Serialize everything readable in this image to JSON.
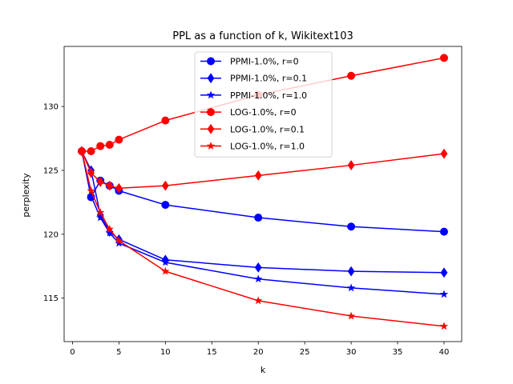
{
  "chart_data": {
    "type": "line",
    "title": "PPL as a function of k, Wikitext103",
    "xlabel": "k",
    "ylabel": "perplexity",
    "xlim": [
      -0.9,
      41.9
    ],
    "ylim": [
      111.6,
      134.7
    ],
    "xticks": [
      0,
      5,
      10,
      15,
      20,
      25,
      30,
      35,
      40
    ],
    "yticks": [
      115,
      120,
      125,
      130
    ],
    "grid": false,
    "legend_position": "top-center",
    "x": [
      1,
      2,
      3,
      4,
      5,
      10,
      20,
      30,
      40
    ],
    "series": [
      {
        "name": "PPMI-1.0%, r=0",
        "color": "#0000ff",
        "marker": "circle",
        "values": [
          126.5,
          122.9,
          124.2,
          123.8,
          123.4,
          122.3,
          121.3,
          120.6,
          120.2
        ]
      },
      {
        "name": "PPMI-1.0%, r=0.1",
        "color": "#0000ff",
        "marker": "diamond",
        "values": [
          126.5,
          125.0,
          121.5,
          120.2,
          119.6,
          118.0,
          117.4,
          117.1,
          117.0
        ]
      },
      {
        "name": "PPMI-1.0%, r=1.0",
        "color": "#0000ff",
        "marker": "star",
        "values": [
          126.5,
          123.0,
          121.3,
          120.1,
          119.3,
          117.8,
          116.5,
          115.8,
          115.3
        ]
      },
      {
        "name": "LOG-1.0%, r=0",
        "color": "#ff0000",
        "marker": "circle",
        "values": [
          126.5,
          126.5,
          126.9,
          127.0,
          127.4,
          128.9,
          130.9,
          132.4,
          133.8
        ]
      },
      {
        "name": "LOG-1.0%, r=0.1",
        "color": "#ff0000",
        "marker": "diamond",
        "values": [
          126.5,
          124.8,
          124.1,
          123.8,
          123.6,
          123.8,
          124.6,
          125.4,
          126.3
        ]
      },
      {
        "name": "LOG-1.0%, r=1.0",
        "color": "#ff0000",
        "marker": "star",
        "values": [
          126.5,
          123.4,
          121.7,
          120.4,
          119.5,
          117.1,
          114.8,
          113.6,
          112.8
        ]
      }
    ]
  }
}
